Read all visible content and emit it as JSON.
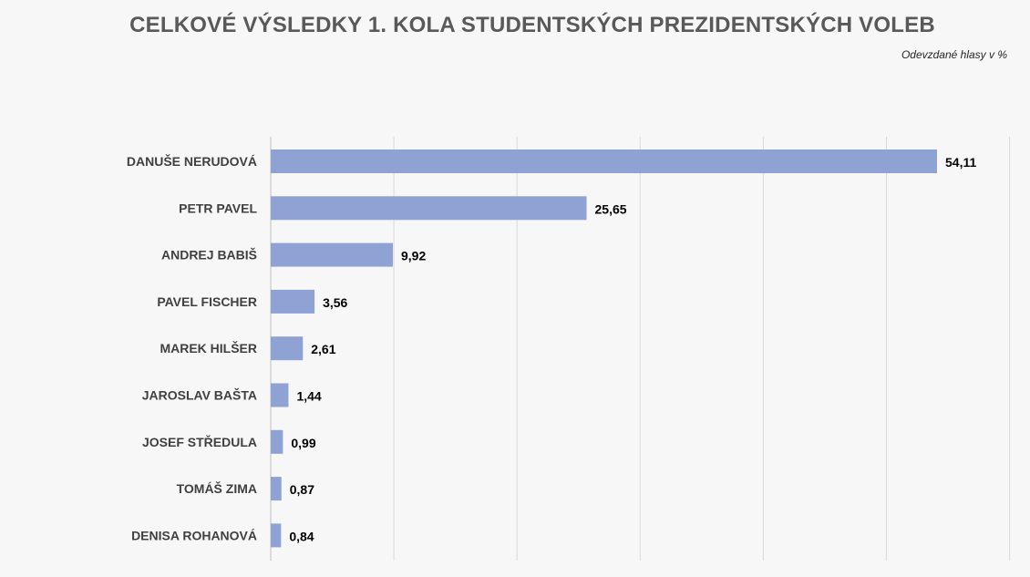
{
  "header": {
    "title": "CELKOVÉ VÝSLEDKY 1. KOLA STUDENTSKÝCH PREZIDENTSKÝCH VOLEB",
    "subtitle": "Odevzdané hlasy v %"
  },
  "colors": {
    "bar": "#8fa2d4",
    "category_label": "#404040",
    "value_label": "#000000",
    "gridline": "#d9d9d9",
    "title": "#595959",
    "background": "#f7f7f7"
  },
  "chart_data": {
    "type": "bar",
    "orientation": "horizontal",
    "title": "CELKOVÉ VÝSLEDKY 1. KOLA STUDENTSKÝCH PREZIDENTSKÝCH VOLEB",
    "subtitle": "Odevzdané hlasy v %",
    "categories": [
      "DANUŠE NERUDOVÁ",
      "PETR PAVEL",
      "ANDREJ BABIŠ",
      "PAVEL FISCHER",
      "MAREK HILŠER",
      "JAROSLAV BAŠTA",
      "JOSEF STŘEDULA",
      "TOMÁŠ ZIMA",
      "DENISA ROHANOVÁ"
    ],
    "values": [
      54.11,
      25.65,
      9.92,
      3.56,
      2.61,
      1.44,
      0.99,
      0.87,
      0.84
    ],
    "value_labels": [
      "54,11",
      "25,65",
      "9,92",
      "3,56",
      "2,61",
      "1,44",
      "0,99",
      "0,87",
      "0,84"
    ],
    "xlim": [
      0,
      60
    ],
    "grid": true,
    "legend": "none"
  }
}
